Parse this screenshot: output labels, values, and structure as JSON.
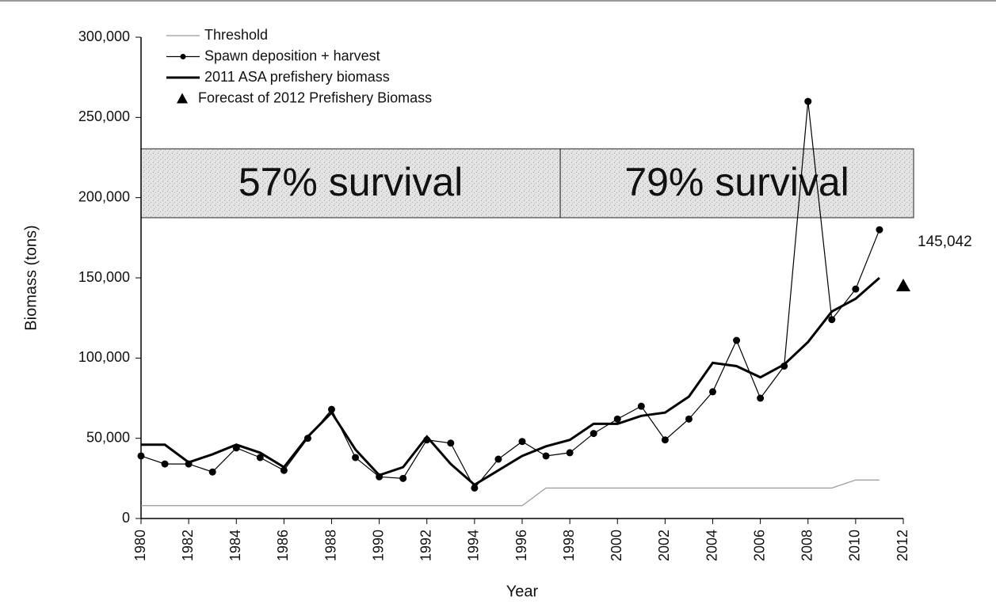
{
  "chart_data": {
    "type": "line",
    "x_label": "Year",
    "y_label": "Biomass (tons)",
    "x": [
      1980,
      1981,
      1982,
      1983,
      1984,
      1985,
      1986,
      1987,
      1988,
      1989,
      1990,
      1991,
      1992,
      1993,
      1994,
      1995,
      1996,
      1997,
      1998,
      1999,
      2000,
      2001,
      2002,
      2003,
      2004,
      2005,
      2006,
      2007,
      2008,
      2009,
      2010,
      2011
    ],
    "series": [
      {
        "name": "Threshold",
        "color": "#999999",
        "values": [
          8000,
          8000,
          8000,
          8000,
          8000,
          8000,
          8000,
          8000,
          8000,
          8000,
          8000,
          8000,
          8000,
          8000,
          8000,
          8000,
          8000,
          19000,
          19000,
          19000,
          19000,
          19000,
          19000,
          19000,
          19000,
          19000,
          19000,
          19000,
          19000,
          19000,
          24000,
          24000
        ]
      },
      {
        "name": "Spawn deposition + harvest",
        "color": "#000000",
        "values": [
          39000,
          34000,
          34000,
          29000,
          44000,
          38000,
          30000,
          50000,
          68000,
          38000,
          26000,
          25000,
          49000,
          47000,
          19000,
          37000,
          48000,
          39000,
          41000,
          53000,
          62000,
          70000,
          49000,
          62000,
          79000,
          111000,
          75000,
          95000,
          260000,
          124000,
          143000,
          180000
        ]
      },
      {
        "name": "2011 ASA prefishery biomass",
        "color": "#000000",
        "values": [
          46000,
          46000,
          35000,
          40000,
          46000,
          41000,
          32000,
          51000,
          66000,
          43000,
          27000,
          32000,
          51000,
          34000,
          21000,
          30000,
          39000,
          45000,
          49000,
          59000,
          59000,
          64000,
          66000,
          76000,
          97000,
          95000,
          88000,
          96000,
          110000,
          129000,
          137000,
          150000
        ]
      },
      {
        "name": "Forecast of 2012 Prefishery Biomass",
        "color": "#000000",
        "x": [
          2012
        ],
        "values": [
          145042
        ],
        "value_labels": [
          "145,042"
        ]
      }
    ],
    "annotations": [
      "57% survival",
      "79% survival"
    ],
    "xlim": [
      1980,
      2012
    ],
    "xticks": [
      1980,
      1982,
      1984,
      1986,
      1988,
      1990,
      1992,
      1994,
      1996,
      1998,
      2000,
      2002,
      2004,
      2006,
      2008,
      2010,
      2012
    ],
    "ylim": [
      0,
      300000
    ],
    "yticks": [
      0,
      {
        "value": 50000,
        "label": "50,000"
      },
      {
        "value": 100000,
        "label": "100,000"
      },
      {
        "value": 150000,
        "label": "150,000"
      },
      {
        "value": 200000,
        "label": "200,000"
      },
      {
        "value": 250000,
        "label": "250,000"
      },
      {
        "value": 300000,
        "label": "300,000"
      }
    ],
    "legend": "upper left"
  }
}
